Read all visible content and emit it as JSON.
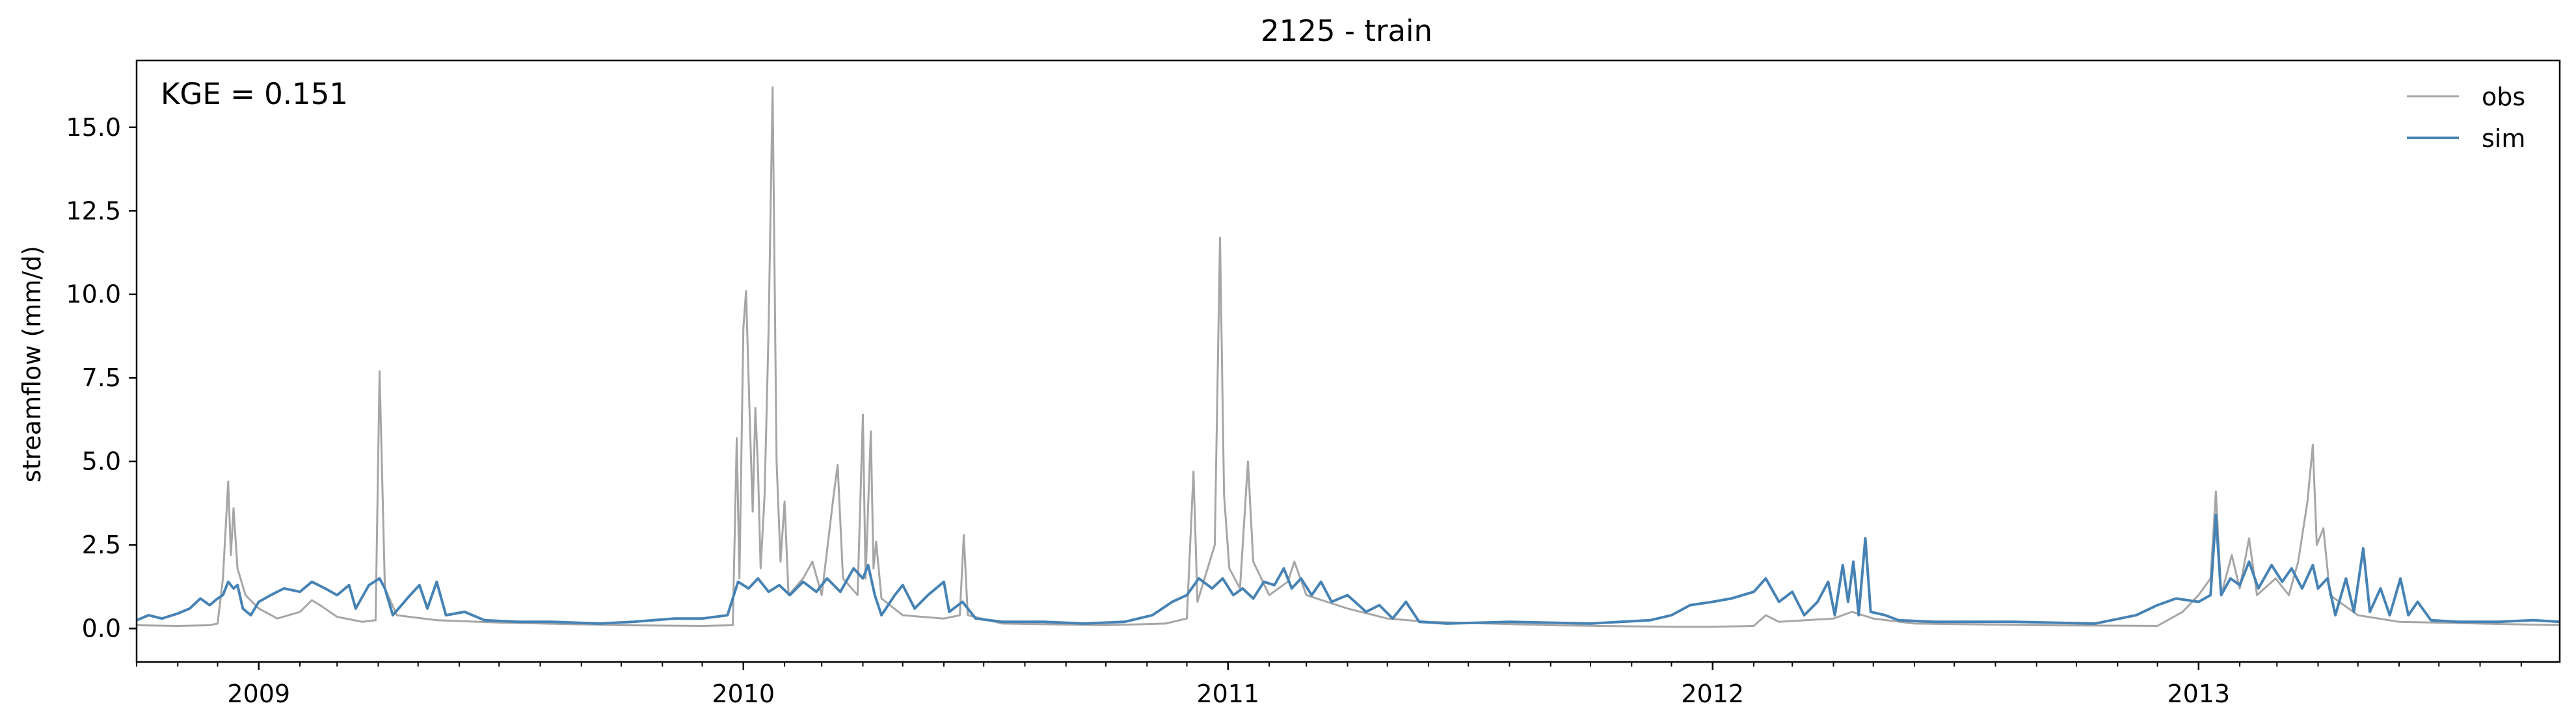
{
  "chart_data": {
    "type": "line",
    "title": "2125 - train",
    "xlabel": "",
    "ylabel": "streamflow (mm/d)",
    "annotation": "KGE = 0.151",
    "xlim": [
      "2008-10-01",
      "2013-09-30"
    ],
    "ylim": [
      -1.0,
      17.0
    ],
    "yticks": [
      0.0,
      2.5,
      5.0,
      7.5,
      10.0,
      12.5,
      15.0
    ],
    "ytick_labels": [
      "0.0",
      "2.5",
      "5.0",
      "7.5",
      "10.0",
      "12.5",
      "15.0"
    ],
    "xticks": [
      "2009-01-01",
      "2010-01-01",
      "2011-01-01",
      "2012-01-01",
      "2013-01-01"
    ],
    "xtick_labels": [
      "2009",
      "2010",
      "2011",
      "2012",
      "2013"
    ],
    "x_minor_ticks": "monthly",
    "grid": false,
    "legend_position": "top-right",
    "series": [
      {
        "name": "obs",
        "color": "#a6a6a6",
        "points": [
          [
            "2008-10-01",
            0.1
          ],
          [
            "2008-11-01",
            0.08
          ],
          [
            "2008-11-25",
            0.1
          ],
          [
            "2008-12-01",
            0.15
          ],
          [
            "2008-12-05",
            1.5
          ],
          [
            "2008-12-09",
            4.4
          ],
          [
            "2008-12-11",
            2.2
          ],
          [
            "2008-12-13",
            3.6
          ],
          [
            "2008-12-16",
            1.8
          ],
          [
            "2008-12-22",
            1.0
          ],
          [
            "2009-01-01",
            0.6
          ],
          [
            "2009-01-15",
            0.3
          ],
          [
            "2009-02-01",
            0.5
          ],
          [
            "2009-02-10",
            0.85
          ],
          [
            "2009-02-18",
            0.65
          ],
          [
            "2009-03-01",
            0.35
          ],
          [
            "2009-03-20",
            0.2
          ],
          [
            "2009-03-30",
            0.25
          ],
          [
            "2009-04-02",
            7.7
          ],
          [
            "2009-04-06",
            1.2
          ],
          [
            "2009-04-15",
            0.4
          ],
          [
            "2009-05-15",
            0.25
          ],
          [
            "2009-07-01",
            0.18
          ],
          [
            "2009-10-01",
            0.1
          ],
          [
            "2009-12-01",
            0.08
          ],
          [
            "2009-12-24",
            0.1
          ],
          [
            "2009-12-27",
            5.7
          ],
          [
            "2009-12-29",
            1.5
          ],
          [
            "2010-01-01",
            9.0
          ],
          [
            "2010-01-03",
            10.1
          ],
          [
            "2010-01-06",
            6.0
          ],
          [
            "2010-01-08",
            3.5
          ],
          [
            "2010-01-10",
            6.6
          ],
          [
            "2010-01-12",
            4.8
          ],
          [
            "2010-01-14",
            1.8
          ],
          [
            "2010-01-17",
            4.0
          ],
          [
            "2010-01-20",
            9.0
          ],
          [
            "2010-01-23",
            16.2
          ],
          [
            "2010-01-26",
            5.0
          ],
          [
            "2010-01-29",
            2.0
          ],
          [
            "2010-02-01",
            3.8
          ],
          [
            "2010-02-04",
            1.0
          ],
          [
            "2010-02-15",
            1.5
          ],
          [
            "2010-02-22",
            2.0
          ],
          [
            "2010-03-01",
            1.0
          ],
          [
            "2010-03-10",
            4.0
          ],
          [
            "2010-03-13",
            4.9
          ],
          [
            "2010-03-17",
            1.5
          ],
          [
            "2010-03-28",
            1.0
          ],
          [
            "2010-04-01",
            6.4
          ],
          [
            "2010-04-03",
            1.5
          ],
          [
            "2010-04-07",
            5.9
          ],
          [
            "2010-04-09",
            1.8
          ],
          [
            "2010-04-11",
            2.6
          ],
          [
            "2010-04-15",
            0.9
          ],
          [
            "2010-05-01",
            0.4
          ],
          [
            "2010-06-01",
            0.3
          ],
          [
            "2010-06-13",
            0.4
          ],
          [
            "2010-06-16",
            2.8
          ],
          [
            "2010-06-19",
            0.4
          ],
          [
            "2010-07-15",
            0.15
          ],
          [
            "2010-10-01",
            0.1
          ],
          [
            "2010-11-15",
            0.15
          ],
          [
            "2010-12-01",
            0.3
          ],
          [
            "2010-12-06",
            4.7
          ],
          [
            "2010-12-09",
            0.8
          ],
          [
            "2010-12-22",
            2.5
          ],
          [
            "2010-12-26",
            11.7
          ],
          [
            "2010-12-29",
            4.0
          ],
          [
            "2011-01-02",
            1.8
          ],
          [
            "2011-01-10",
            1.2
          ],
          [
            "2011-01-16",
            5.0
          ],
          [
            "2011-01-20",
            2.0
          ],
          [
            "2011-02-01",
            1.0
          ],
          [
            "2011-02-15",
            1.4
          ],
          [
            "2011-02-20",
            2.0
          ],
          [
            "2011-03-01",
            1.0
          ],
          [
            "2011-04-01",
            0.6
          ],
          [
            "2011-05-01",
            0.3
          ],
          [
            "2011-06-01",
            0.2
          ],
          [
            "2011-09-01",
            0.1
          ],
          [
            "2011-12-01",
            0.05
          ],
          [
            "2012-01-01",
            0.05
          ],
          [
            "2012-02-01",
            0.08
          ],
          [
            "2012-02-10",
            0.4
          ],
          [
            "2012-02-20",
            0.2
          ],
          [
            "2012-04-01",
            0.3
          ],
          [
            "2012-04-15",
            0.5
          ],
          [
            "2012-05-01",
            0.3
          ],
          [
            "2012-06-01",
            0.15
          ],
          [
            "2012-09-01",
            0.1
          ],
          [
            "2012-12-01",
            0.08
          ],
          [
            "2012-12-20",
            0.5
          ],
          [
            "2013-01-01",
            1.0
          ],
          [
            "2013-01-10",
            1.5
          ],
          [
            "2013-01-14",
            4.1
          ],
          [
            "2013-01-18",
            1.0
          ],
          [
            "2013-01-26",
            2.2
          ],
          [
            "2013-02-01",
            1.2
          ],
          [
            "2013-02-08",
            2.7
          ],
          [
            "2013-02-14",
            1.0
          ],
          [
            "2013-02-28",
            1.5
          ],
          [
            "2013-03-10",
            1.0
          ],
          [
            "2013-03-17",
            2.0
          ],
          [
            "2013-03-24",
            3.8
          ],
          [
            "2013-03-28",
            5.5
          ],
          [
            "2013-03-31",
            2.5
          ],
          [
            "2013-04-05",
            3.0
          ],
          [
            "2013-04-10",
            1.0
          ],
          [
            "2013-05-01",
            0.4
          ],
          [
            "2013-06-01",
            0.2
          ],
          [
            "2013-09-30",
            0.1
          ]
        ]
      },
      {
        "name": "sim",
        "color": "#4682b4",
        "points": [
          [
            "2008-10-01",
            0.25
          ],
          [
            "2008-10-10",
            0.4
          ],
          [
            "2008-10-20",
            0.3
          ],
          [
            "2008-11-01",
            0.45
          ],
          [
            "2008-11-10",
            0.6
          ],
          [
            "2008-11-18",
            0.9
          ],
          [
            "2008-11-25",
            0.7
          ],
          [
            "2008-12-01",
            0.9
          ],
          [
            "2008-12-05",
            1.0
          ],
          [
            "2008-12-09",
            1.4
          ],
          [
            "2008-12-13",
            1.2
          ],
          [
            "2008-12-16",
            1.3
          ],
          [
            "2008-12-20",
            0.6
          ],
          [
            "2008-12-26",
            0.4
          ],
          [
            "2009-01-01",
            0.8
          ],
          [
            "2009-01-10",
            1.0
          ],
          [
            "2009-01-20",
            1.2
          ],
          [
            "2009-02-01",
            1.1
          ],
          [
            "2009-02-10",
            1.4
          ],
          [
            "2009-02-20",
            1.2
          ],
          [
            "2009-03-01",
            1.0
          ],
          [
            "2009-03-10",
            1.3
          ],
          [
            "2009-03-15",
            0.6
          ],
          [
            "2009-03-25",
            1.3
          ],
          [
            "2009-04-02",
            1.5
          ],
          [
            "2009-04-06",
            1.2
          ],
          [
            "2009-04-12",
            0.4
          ],
          [
            "2009-04-25",
            1.0
          ],
          [
            "2009-05-02",
            1.3
          ],
          [
            "2009-05-08",
            0.6
          ],
          [
            "2009-05-15",
            1.4
          ],
          [
            "2009-05-22",
            0.4
          ],
          [
            "2009-06-05",
            0.5
          ],
          [
            "2009-06-20",
            0.25
          ],
          [
            "2009-07-15",
            0.2
          ],
          [
            "2009-08-10",
            0.2
          ],
          [
            "2009-09-15",
            0.15
          ],
          [
            "2009-10-10",
            0.2
          ],
          [
            "2009-11-10",
            0.3
          ],
          [
            "2009-12-01",
            0.3
          ],
          [
            "2009-12-20",
            0.4
          ],
          [
            "2009-12-28",
            1.4
          ],
          [
            "2010-01-05",
            1.2
          ],
          [
            "2010-01-12",
            1.5
          ],
          [
            "2010-01-20",
            1.1
          ],
          [
            "2010-01-28",
            1.3
          ],
          [
            "2010-02-05",
            1.0
          ],
          [
            "2010-02-15",
            1.4
          ],
          [
            "2010-02-25",
            1.1
          ],
          [
            "2010-03-05",
            1.5
          ],
          [
            "2010-03-15",
            1.1
          ],
          [
            "2010-03-25",
            1.8
          ],
          [
            "2010-04-01",
            1.5
          ],
          [
            "2010-04-05",
            1.9
          ],
          [
            "2010-04-10",
            1.0
          ],
          [
            "2010-04-15",
            0.4
          ],
          [
            "2010-04-25",
            1.0
          ],
          [
            "2010-05-01",
            1.3
          ],
          [
            "2010-05-10",
            0.6
          ],
          [
            "2010-05-20",
            1.0
          ],
          [
            "2010-06-01",
            1.4
          ],
          [
            "2010-06-05",
            0.5
          ],
          [
            "2010-06-15",
            0.8
          ],
          [
            "2010-06-25",
            0.3
          ],
          [
            "2010-07-15",
            0.2
          ],
          [
            "2010-08-15",
            0.2
          ],
          [
            "2010-09-15",
            0.15
          ],
          [
            "2010-10-15",
            0.2
          ],
          [
            "2010-11-05",
            0.4
          ],
          [
            "2010-11-20",
            0.8
          ],
          [
            "2010-12-01",
            1.0
          ],
          [
            "2010-12-10",
            1.5
          ],
          [
            "2010-12-20",
            1.2
          ],
          [
            "2010-12-28",
            1.5
          ],
          [
            "2011-01-05",
            1.0
          ],
          [
            "2011-01-12",
            1.2
          ],
          [
            "2011-01-20",
            0.9
          ],
          [
            "2011-01-28",
            1.4
          ],
          [
            "2011-02-05",
            1.3
          ],
          [
            "2011-02-12",
            1.8
          ],
          [
            "2011-02-18",
            1.2
          ],
          [
            "2011-02-25",
            1.5
          ],
          [
            "2011-03-05",
            1.0
          ],
          [
            "2011-03-12",
            1.4
          ],
          [
            "2011-03-20",
            0.8
          ],
          [
            "2011-04-01",
            1.0
          ],
          [
            "2011-04-15",
            0.5
          ],
          [
            "2011-04-25",
            0.7
          ],
          [
            "2011-05-05",
            0.3
          ],
          [
            "2011-05-15",
            0.8
          ],
          [
            "2011-05-25",
            0.2
          ],
          [
            "2011-06-15",
            0.15
          ],
          [
            "2011-08-01",
            0.2
          ],
          [
            "2011-10-01",
            0.15
          ],
          [
            "2011-11-15",
            0.25
          ],
          [
            "2011-12-01",
            0.4
          ],
          [
            "2011-12-15",
            0.7
          ],
          [
            "2012-01-01",
            0.8
          ],
          [
            "2012-01-15",
            0.9
          ],
          [
            "2012-02-01",
            1.1
          ],
          [
            "2012-02-10",
            1.5
          ],
          [
            "2012-02-20",
            0.8
          ],
          [
            "2012-03-01",
            1.1
          ],
          [
            "2012-03-10",
            0.4
          ],
          [
            "2012-03-20",
            0.8
          ],
          [
            "2012-03-28",
            1.4
          ],
          [
            "2012-04-02",
            0.4
          ],
          [
            "2012-04-08",
            1.9
          ],
          [
            "2012-04-12",
            0.8
          ],
          [
            "2012-04-16",
            2.0
          ],
          [
            "2012-04-20",
            0.4
          ],
          [
            "2012-04-25",
            2.7
          ],
          [
            "2012-04-29",
            0.5
          ],
          [
            "2012-05-10",
            0.4
          ],
          [
            "2012-05-20",
            0.25
          ],
          [
            "2012-06-15",
            0.2
          ],
          [
            "2012-08-15",
            0.2
          ],
          [
            "2012-10-15",
            0.15
          ],
          [
            "2012-11-15",
            0.4
          ],
          [
            "2012-12-01",
            0.7
          ],
          [
            "2012-12-15",
            0.9
          ],
          [
            "2013-01-01",
            0.8
          ],
          [
            "2013-01-10",
            1.0
          ],
          [
            "2013-01-14",
            3.4
          ],
          [
            "2013-01-18",
            1.0
          ],
          [
            "2013-01-25",
            1.5
          ],
          [
            "2013-02-01",
            1.3
          ],
          [
            "2013-02-08",
            2.0
          ],
          [
            "2013-02-15",
            1.2
          ],
          [
            "2013-02-25",
            1.9
          ],
          [
            "2013-03-05",
            1.4
          ],
          [
            "2013-03-12",
            1.8
          ],
          [
            "2013-03-20",
            1.2
          ],
          [
            "2013-03-28",
            1.9
          ],
          [
            "2013-04-01",
            1.2
          ],
          [
            "2013-04-08",
            1.5
          ],
          [
            "2013-04-14",
            0.4
          ],
          [
            "2013-04-22",
            1.5
          ],
          [
            "2013-04-28",
            0.5
          ],
          [
            "2013-05-05",
            2.4
          ],
          [
            "2013-05-10",
            0.5
          ],
          [
            "2013-05-18",
            1.2
          ],
          [
            "2013-05-25",
            0.4
          ],
          [
            "2013-06-02",
            1.5
          ],
          [
            "2013-06-08",
            0.4
          ],
          [
            "2013-06-15",
            0.8
          ],
          [
            "2013-06-25",
            0.25
          ],
          [
            "2013-07-15",
            0.2
          ],
          [
            "2013-08-15",
            0.2
          ],
          [
            "2013-09-10",
            0.25
          ],
          [
            "2013-09-30",
            0.2
          ]
        ]
      }
    ]
  }
}
